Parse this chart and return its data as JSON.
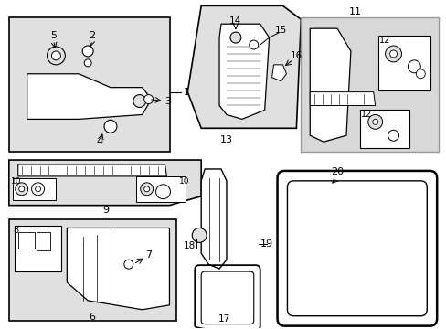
{
  "bg": "#ffffff",
  "lc": "#000000",
  "gray": "#cccccc",
  "gray2": "#e0e0e0"
}
